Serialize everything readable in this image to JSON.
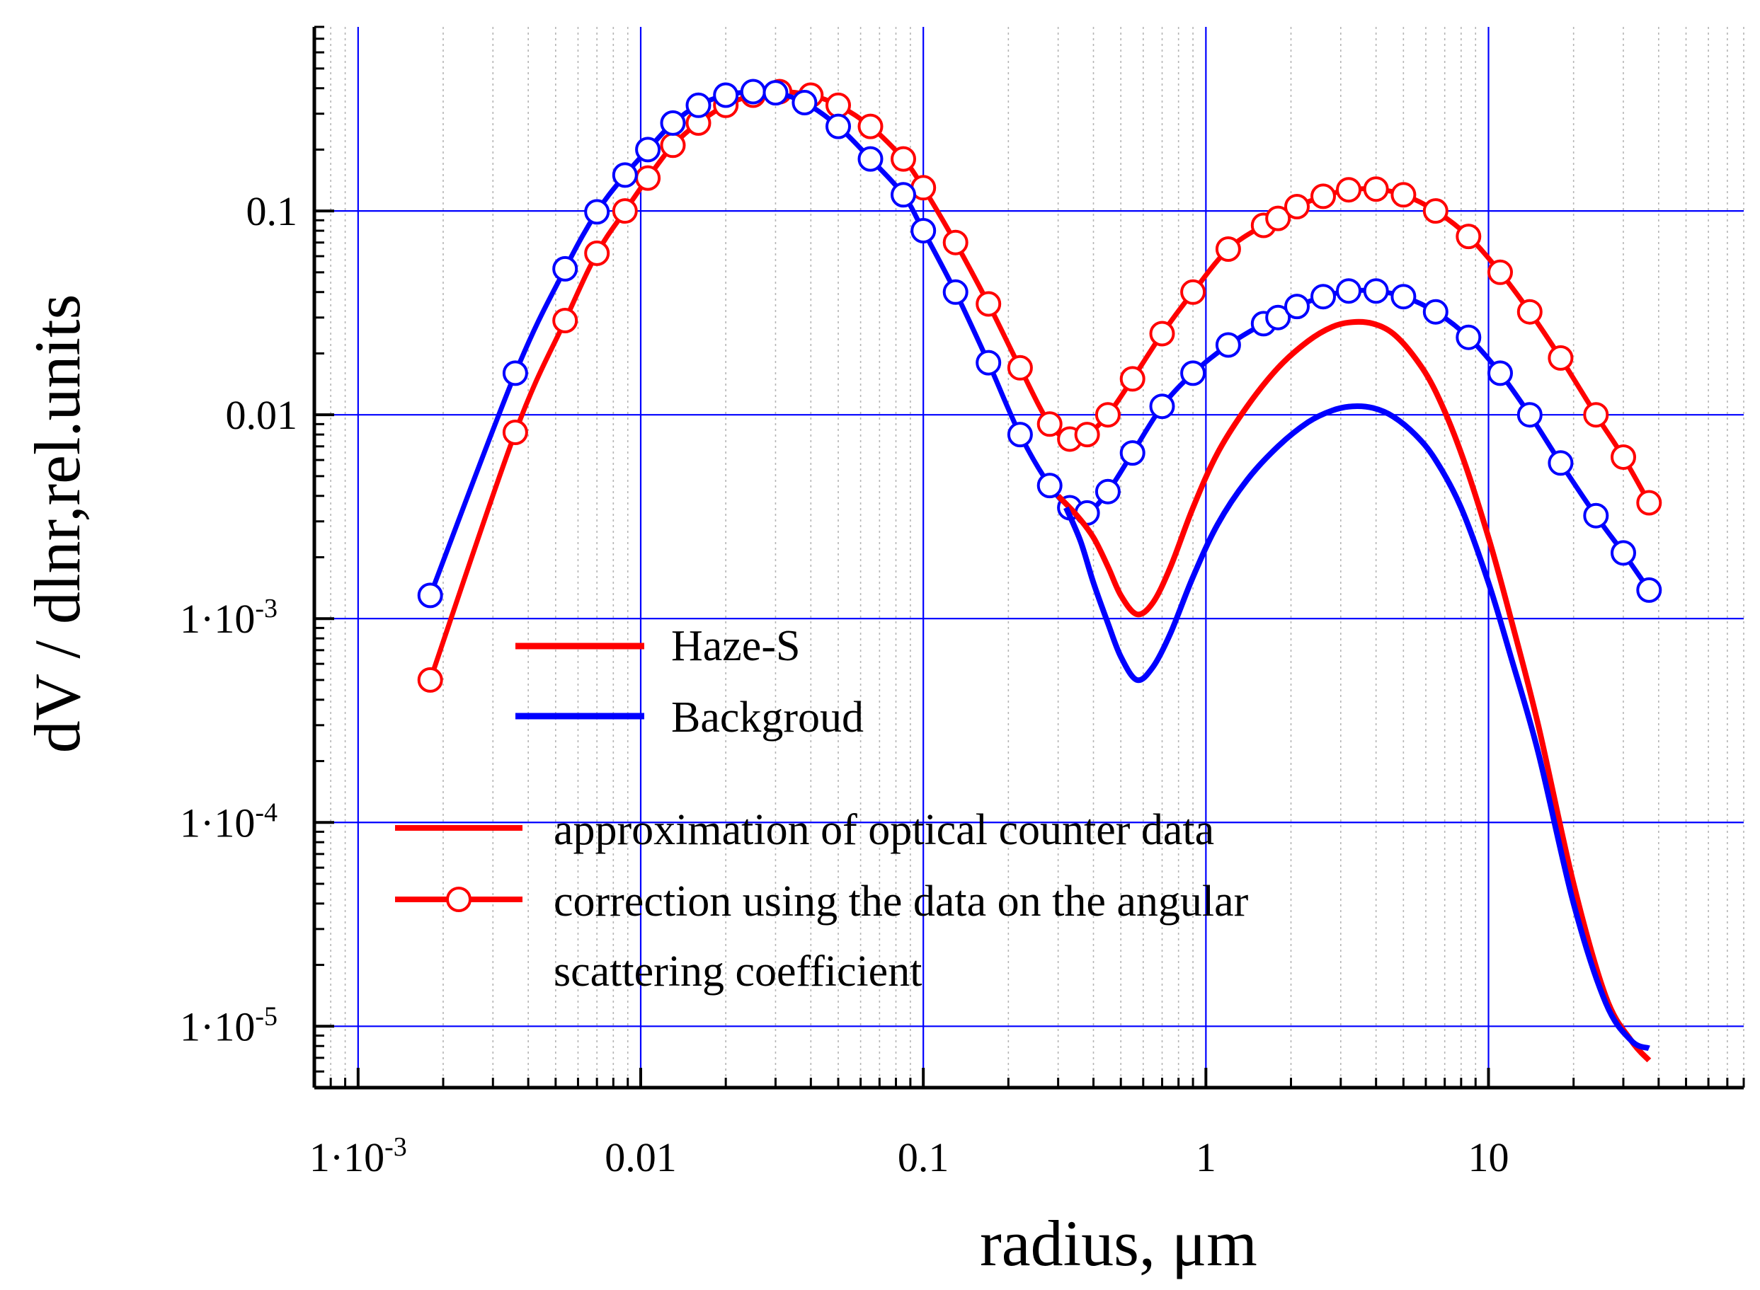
{
  "chart_data": {
    "type": "line",
    "xscale": "log",
    "yscale": "log",
    "xlim": [
      0.0007,
      80
    ],
    "ylim": [
      5e-06,
      0.8
    ],
    "xlabel": "radius, μm",
    "ylabel": "dV / dlnr,rel.units",
    "xticks": [
      {
        "value": 0.001,
        "label": "1·10",
        "exp": "-3"
      },
      {
        "value": 0.01,
        "label": "0.01",
        "exp": ""
      },
      {
        "value": 0.1,
        "label": "0.1",
        "exp": ""
      },
      {
        "value": 1,
        "label": "1",
        "exp": ""
      },
      {
        "value": 10,
        "label": "10",
        "exp": ""
      }
    ],
    "yticks": [
      {
        "value": 1e-05,
        "label": "1·10",
        "exp": "-5"
      },
      {
        "value": 0.0001,
        "label": "1·10",
        "exp": "-4"
      },
      {
        "value": 0.001,
        "label": "1·10",
        "exp": "-3"
      },
      {
        "value": 0.01,
        "label": "0.01",
        "exp": ""
      },
      {
        "value": 0.1,
        "label": "0.1",
        "exp": ""
      }
    ],
    "grid": true,
    "legend": {
      "colors": [
        {
          "label": "Haze-S",
          "color": "#ff0000"
        },
        {
          "label": "Backgroud",
          "color": "#0000ff"
        }
      ],
      "styles": [
        {
          "label": "approximation of optical counter data",
          "style": "line"
        },
        {
          "label": "correction using the data on the angular",
          "style": "line-marker"
        },
        {
          "label": "scattering coefficient",
          "style": "continuation"
        }
      ]
    },
    "series": [
      {
        "name": "Haze-S correction (markers)",
        "color": "#ff0000",
        "style": "line-marker",
        "x": [
          0.0018,
          0.0036,
          0.0054,
          0.007,
          0.0088,
          0.0106,
          0.013,
          0.016,
          0.02,
          0.025,
          0.031,
          0.04,
          0.05,
          0.065,
          0.085,
          0.1,
          0.13,
          0.17,
          0.22,
          0.28,
          0.33,
          0.38,
          0.45,
          0.55,
          0.7,
          0.9,
          1.2,
          1.6,
          1.8,
          2.1,
          2.6,
          3.2,
          4,
          5,
          6.5,
          8.5,
          11,
          14,
          18,
          24,
          30,
          37
        ],
        "y": [
          0.0005,
          0.0082,
          0.029,
          0.062,
          0.1,
          0.145,
          0.21,
          0.27,
          0.33,
          0.37,
          0.385,
          0.37,
          0.33,
          0.26,
          0.18,
          0.13,
          0.07,
          0.035,
          0.017,
          0.009,
          0.0076,
          0.008,
          0.01,
          0.015,
          0.025,
          0.04,
          0.065,
          0.085,
          0.092,
          0.105,
          0.118,
          0.127,
          0.128,
          0.12,
          0.1,
          0.075,
          0.05,
          0.032,
          0.019,
          0.01,
          0.0062,
          0.0037
        ]
      },
      {
        "name": "Backgroud correction (markers)",
        "color": "#0000ff",
        "style": "line-marker",
        "x": [
          0.0018,
          0.0036,
          0.0054,
          0.007,
          0.0088,
          0.0106,
          0.013,
          0.016,
          0.02,
          0.025,
          0.03,
          0.038,
          0.05,
          0.065,
          0.085,
          0.1,
          0.13,
          0.17,
          0.22,
          0.28,
          0.33,
          0.38,
          0.45,
          0.55,
          0.7,
          0.9,
          1.2,
          1.6,
          1.8,
          2.1,
          2.6,
          3.2,
          4,
          5,
          6.5,
          8.5,
          11,
          14,
          18,
          24,
          30,
          37
        ],
        "y": [
          0.0013,
          0.016,
          0.052,
          0.099,
          0.15,
          0.2,
          0.27,
          0.33,
          0.37,
          0.385,
          0.38,
          0.34,
          0.26,
          0.18,
          0.12,
          0.08,
          0.04,
          0.018,
          0.008,
          0.0045,
          0.0035,
          0.0033,
          0.0042,
          0.0065,
          0.011,
          0.016,
          0.022,
          0.028,
          0.03,
          0.034,
          0.038,
          0.0405,
          0.0405,
          0.038,
          0.032,
          0.024,
          0.016,
          0.01,
          0.0058,
          0.0032,
          0.0021,
          0.00138
        ]
      },
      {
        "name": "Haze-S approximation",
        "color": "#ff0000",
        "style": "line",
        "x": [
          0.3,
          0.35,
          0.4,
          0.45,
          0.5,
          0.57,
          0.65,
          0.75,
          0.9,
          1.1,
          1.4,
          1.8,
          2.3,
          2.8,
          3.3,
          3.9,
          4.6,
          5.5,
          6.5,
          8,
          10,
          12,
          15,
          20,
          26,
          32,
          37
        ],
        "y": [
          0.004,
          0.0032,
          0.0025,
          0.0018,
          0.0013,
          0.00105,
          0.0012,
          0.0018,
          0.0035,
          0.0065,
          0.011,
          0.017,
          0.023,
          0.027,
          0.0285,
          0.028,
          0.025,
          0.019,
          0.013,
          0.0065,
          0.0025,
          0.001,
          0.0003,
          5e-05,
          1.4e-05,
          8.5e-06,
          6.8e-06
        ]
      },
      {
        "name": "Backgroud approximation",
        "color": "#0000ff",
        "style": "line",
        "x": [
          0.32,
          0.36,
          0.4,
          0.45,
          0.5,
          0.57,
          0.65,
          0.75,
          0.9,
          1.1,
          1.4,
          1.8,
          2.3,
          2.8,
          3.3,
          3.9,
          4.6,
          5.5,
          6.5,
          8,
          10,
          12,
          15,
          20,
          26,
          32,
          37
        ],
        "y": [
          0.0035,
          0.0024,
          0.0015,
          0.00095,
          0.00065,
          0.0005,
          0.00058,
          0.00085,
          0.0016,
          0.0029,
          0.0048,
          0.007,
          0.0092,
          0.0105,
          0.011,
          0.0108,
          0.0098,
          0.008,
          0.006,
          0.0035,
          0.0015,
          0.00065,
          0.00022,
          4e-05,
          1.3e-05,
          8.5e-06,
          7.8e-06
        ]
      }
    ]
  }
}
